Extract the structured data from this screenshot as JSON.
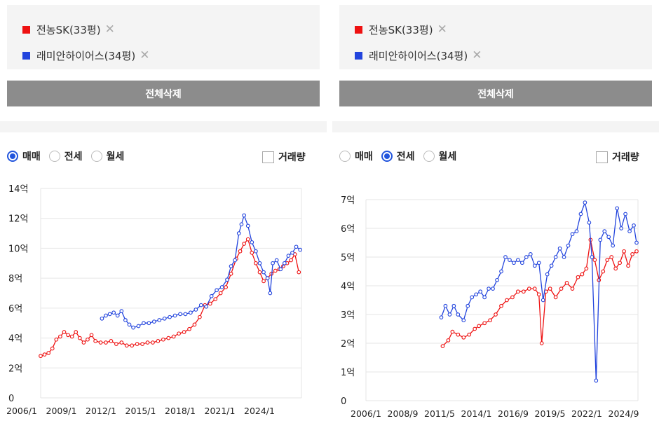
{
  "left": {
    "selections": [
      {
        "label": "전농SK(33평)",
        "color": "#ee1111"
      },
      {
        "label": "래미안하이어스(34평)",
        "color": "#2244dd"
      }
    ],
    "delete_label": "전체삭제",
    "radios": [
      {
        "label": "매매",
        "checked": true
      },
      {
        "label": "전세",
        "checked": false
      },
      {
        "label": "월세",
        "checked": false
      }
    ],
    "volume_label": "거래량"
  },
  "right": {
    "selections": [
      {
        "label": "전농SK(33평)",
        "color": "#ee1111"
      },
      {
        "label": "래미안하이어스(34평)",
        "color": "#2244dd"
      }
    ],
    "delete_label": "전체삭제",
    "radios": [
      {
        "label": "매매",
        "checked": false
      },
      {
        "label": "전세",
        "checked": true
      },
      {
        "label": "월세",
        "checked": false
      }
    ],
    "volume_label": "거래량"
  },
  "chart_data": [
    {
      "type": "line",
      "x_ticks": [
        "2006/1",
        "2009/1",
        "2012/1",
        "2015/1",
        "2018/1",
        "2021/1",
        "2024/1"
      ],
      "y_ticks": [
        "0",
        "2억",
        "4억",
        "6억",
        "8억",
        "10억",
        "12억",
        "14억"
      ],
      "xlim": [
        2006.0,
        2026.0
      ],
      "ylim": [
        0,
        14
      ],
      "grid": true,
      "series": [
        {
          "name": "전농SK(33평)",
          "color": "#ee1111",
          "x": [
            2006.0,
            2006.3,
            2006.6,
            2006.9,
            2007.2,
            2007.5,
            2007.8,
            2008.1,
            2008.4,
            2008.7,
            2009.0,
            2009.3,
            2009.6,
            2009.9,
            2010.2,
            2010.6,
            2011.0,
            2011.4,
            2011.8,
            2012.2,
            2012.6,
            2013.0,
            2013.4,
            2013.8,
            2014.2,
            2014.6,
            2015.0,
            2015.4,
            2015.8,
            2016.2,
            2016.6,
            2017.0,
            2017.4,
            2017.8,
            2018.2,
            2018.6,
            2019.0,
            2019.4,
            2019.8,
            2020.2,
            2020.6,
            2021.0,
            2021.3,
            2021.6,
            2021.9,
            2022.2,
            2022.5,
            2022.8,
            2023.1,
            2023.4,
            2023.7,
            2024.0,
            2024.3,
            2024.6,
            2024.9,
            2025.2,
            2025.5,
            2025.8
          ],
          "y": [
            2.8,
            2.9,
            3.0,
            3.3,
            3.9,
            4.1,
            4.4,
            4.2,
            4.1,
            4.4,
            4.0,
            3.7,
            3.9,
            4.2,
            3.8,
            3.7,
            3.7,
            3.8,
            3.6,
            3.7,
            3.5,
            3.5,
            3.6,
            3.6,
            3.7,
            3.7,
            3.8,
            3.9,
            4.0,
            4.1,
            4.3,
            4.4,
            4.6,
            4.9,
            5.4,
            6.2,
            6.3,
            6.6,
            7.0,
            7.4,
            8.3,
            9.3,
            9.8,
            10.3,
            10.6,
            9.7,
            9.0,
            8.4,
            7.8,
            8.0,
            8.3,
            8.5,
            8.6,
            8.8,
            9.0,
            9.2,
            9.6,
            8.4
          ]
        },
        {
          "name": "래미안하이어스(34평)",
          "color": "#2244dd",
          "x": [
            2010.7,
            2011.0,
            2011.3,
            2011.6,
            2011.9,
            2012.2,
            2012.5,
            2012.8,
            2013.1,
            2013.5,
            2013.9,
            2014.3,
            2014.7,
            2015.1,
            2015.5,
            2015.9,
            2016.3,
            2016.7,
            2017.1,
            2017.5,
            2017.9,
            2018.3,
            2018.7,
            2019.1,
            2019.5,
            2019.9,
            2020.3,
            2020.6,
            2020.9,
            2021.2,
            2021.4,
            2021.6,
            2021.9,
            2022.2,
            2022.5,
            2022.8,
            2023.1,
            2023.4,
            2023.6,
            2023.8,
            2024.1,
            2024.4,
            2024.7,
            2025.0,
            2025.3,
            2025.6,
            2025.9
          ],
          "y": [
            5.3,
            5.5,
            5.6,
            5.7,
            5.5,
            5.8,
            5.2,
            4.9,
            4.7,
            4.8,
            5.0,
            5.0,
            5.1,
            5.2,
            5.3,
            5.4,
            5.5,
            5.6,
            5.6,
            5.7,
            5.9,
            6.2,
            6.1,
            6.8,
            7.2,
            7.4,
            7.9,
            8.8,
            9.2,
            11.0,
            11.6,
            12.2,
            11.5,
            10.4,
            9.8,
            9.0,
            8.4,
            8.0,
            7.0,
            9.0,
            9.2,
            8.6,
            9.0,
            9.5,
            9.7,
            10.1,
            9.9
          ]
        }
      ]
    },
    {
      "type": "line",
      "x_ticks": [
        "2006/1",
        "2008/9",
        "2011/5",
        "2014/1",
        "2016/9",
        "2019/5",
        "2022/1",
        "2024/9"
      ],
      "y_ticks": [
        "0",
        "1억",
        "2억",
        "3억",
        "4억",
        "5억",
        "6억",
        "7억"
      ],
      "xlim": [
        2006.0,
        2025.5
      ],
      "ylim": [
        0,
        7
      ],
      "grid": true,
      "series": [
        {
          "name": "전농SK(33평)",
          "color": "#ee1111",
          "x": [
            2011.5,
            2011.9,
            2012.2,
            2012.6,
            2013.0,
            2013.4,
            2013.8,
            2014.1,
            2014.5,
            2014.9,
            2015.3,
            2015.7,
            2016.1,
            2016.5,
            2016.9,
            2017.3,
            2017.7,
            2018.1,
            2018.4,
            2018.6,
            2018.9,
            2019.2,
            2019.6,
            2020.0,
            2020.4,
            2020.8,
            2021.2,
            2021.5,
            2021.8,
            2022.1,
            2022.4,
            2022.7,
            2023.0,
            2023.3,
            2023.6,
            2023.9,
            2024.2,
            2024.5,
            2024.8,
            2025.1,
            2025.4
          ],
          "y": [
            1.9,
            2.1,
            2.4,
            2.3,
            2.2,
            2.3,
            2.5,
            2.6,
            2.7,
            2.8,
            3.0,
            3.3,
            3.5,
            3.6,
            3.8,
            3.8,
            3.9,
            3.9,
            3.7,
            2.0,
            3.8,
            3.9,
            3.6,
            3.9,
            4.1,
            3.9,
            4.3,
            4.4,
            4.6,
            5.6,
            4.9,
            4.2,
            4.5,
            4.9,
            5.0,
            4.6,
            4.8,
            5.2,
            4.7,
            5.1,
            5.2
          ]
        },
        {
          "name": "래미안하이어스(34평)",
          "color": "#2244dd",
          "x": [
            2011.4,
            2011.7,
            2012.0,
            2012.3,
            2012.6,
            2013.0,
            2013.3,
            2013.6,
            2013.9,
            2014.2,
            2014.5,
            2014.8,
            2015.1,
            2015.4,
            2015.7,
            2016.0,
            2016.3,
            2016.6,
            2016.9,
            2017.2,
            2017.5,
            2017.8,
            2018.1,
            2018.4,
            2018.7,
            2019.0,
            2019.3,
            2019.6,
            2019.9,
            2020.2,
            2020.5,
            2020.8,
            2021.1,
            2021.4,
            2021.7,
            2022.0,
            2022.2,
            2022.5,
            2022.8,
            2023.1,
            2023.4,
            2023.7,
            2024.0,
            2024.3,
            2024.6,
            2024.9,
            2025.2,
            2025.4
          ],
          "y": [
            2.9,
            3.3,
            3.0,
            3.3,
            3.0,
            2.8,
            3.3,
            3.6,
            3.7,
            3.8,
            3.6,
            3.9,
            3.9,
            4.2,
            4.5,
            5.0,
            4.9,
            4.8,
            4.9,
            4.8,
            5.0,
            5.1,
            4.7,
            4.8,
            3.5,
            4.4,
            4.7,
            5.0,
            5.3,
            5.0,
            5.4,
            5.8,
            5.9,
            6.5,
            6.9,
            6.2,
            5.0,
            0.7,
            5.6,
            5.9,
            5.7,
            5.4,
            6.7,
            6.0,
            6.5,
            5.9,
            6.1,
            5.5
          ]
        }
      ]
    }
  ]
}
